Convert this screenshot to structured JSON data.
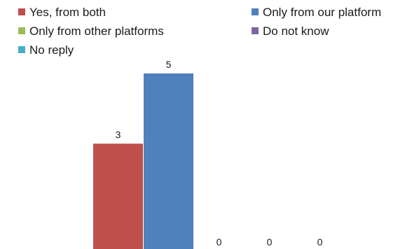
{
  "chart_data": {
    "type": "bar",
    "title": "",
    "xlabel": "",
    "ylabel": "",
    "ylim": [
      0,
      5
    ],
    "grid": false,
    "legend_position": "top",
    "series": [
      {
        "name": "Yes, from both",
        "value": 3,
        "color": "#C0504D"
      },
      {
        "name": "Only from our platform",
        "value": 5,
        "color": "#4F81BD"
      },
      {
        "name": "Only from other platforms",
        "value": 0,
        "color": "#9BBB59"
      },
      {
        "name": "Do not know",
        "value": 0,
        "color": "#8064A2"
      },
      {
        "name": "No reply",
        "value": 0,
        "color": "#4BACC6"
      }
    ]
  }
}
